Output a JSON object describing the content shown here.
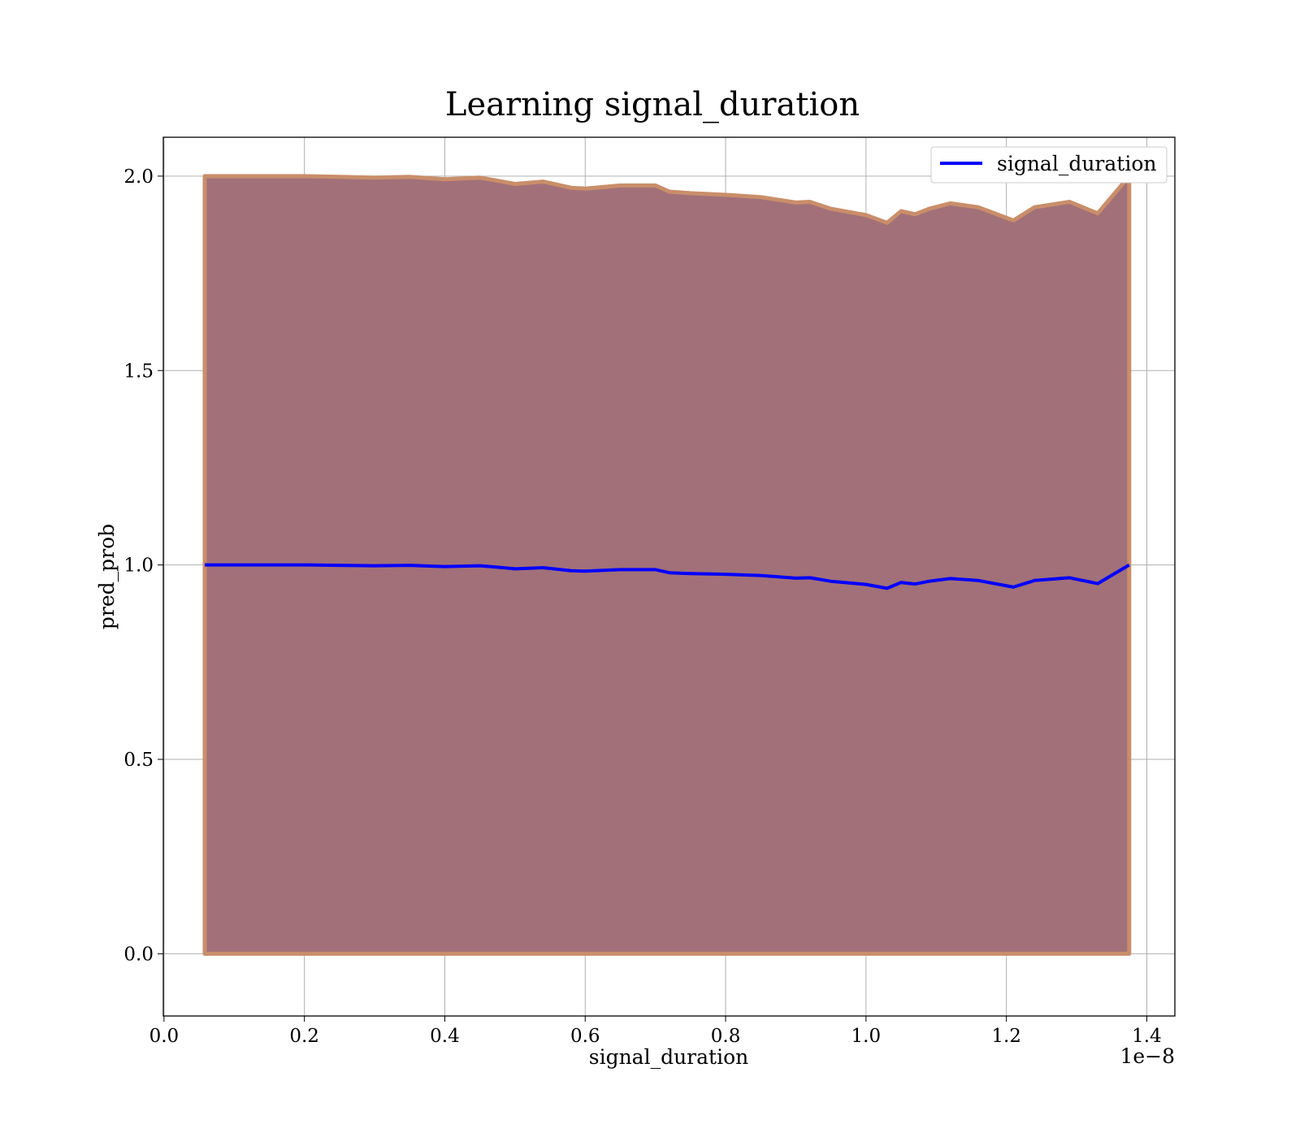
{
  "chart_data": {
    "type": "line",
    "title": "Learning signal_duration",
    "xlabel": "signal_duration",
    "ylabel": "pred_prob",
    "x_offset_text": "1e−8",
    "xlim": [
      -0.001,
      1.44
    ],
    "ylim": [
      -0.16,
      2.1
    ],
    "x_ticks": [
      0.0,
      0.2,
      0.4,
      0.6,
      0.8,
      1.0,
      1.2,
      1.4
    ],
    "x_tick_labels": [
      "0.0",
      "0.2",
      "0.4",
      "0.6",
      "0.8",
      "1.0",
      "1.2",
      "1.4"
    ],
    "y_ticks": [
      0.0,
      0.5,
      1.0,
      1.5,
      2.0
    ],
    "y_tick_labels": [
      "0.0",
      "0.5",
      "1.0",
      "1.5",
      "2.0"
    ],
    "grid": true,
    "legend_position": "top-right",
    "colors": {
      "line": "#0000ff",
      "band_inner": "#a27079",
      "band_outer": "#c98e6a",
      "grid": "#b0b0b0"
    },
    "series": [
      {
        "name": "signal_duration",
        "x": [
          0.058,
          0.1,
          0.15,
          0.2,
          0.25,
          0.3,
          0.35,
          0.4,
          0.45,
          0.47,
          0.5,
          0.54,
          0.58,
          0.6,
          0.65,
          0.7,
          0.72,
          0.75,
          0.8,
          0.85,
          0.9,
          0.92,
          0.95,
          1.0,
          1.03,
          1.05,
          1.07,
          1.09,
          1.12,
          1.16,
          1.21,
          1.24,
          1.29,
          1.33,
          1.375
        ],
        "y": [
          1.0,
          1.0,
          1.0,
          1.0,
          0.999,
          0.998,
          0.999,
          0.996,
          0.998,
          0.995,
          0.99,
          0.993,
          0.985,
          0.984,
          0.988,
          0.988,
          0.98,
          0.978,
          0.976,
          0.973,
          0.966,
          0.967,
          0.958,
          0.95,
          0.94,
          0.955,
          0.951,
          0.958,
          0.965,
          0.96,
          0.943,
          0.96,
          0.967,
          0.952,
          1.0
        ]
      }
    ],
    "band": {
      "x": [
        0.058,
        0.1,
        0.15,
        0.2,
        0.25,
        0.3,
        0.35,
        0.4,
        0.45,
        0.47,
        0.5,
        0.54,
        0.58,
        0.6,
        0.65,
        0.7,
        0.72,
        0.75,
        0.8,
        0.85,
        0.9,
        0.92,
        0.95,
        1.0,
        1.03,
        1.05,
        1.07,
        1.09,
        1.12,
        1.16,
        1.21,
        1.24,
        1.29,
        1.33,
        1.375
      ],
      "upper": [
        2.0,
        2.0,
        2.0,
        2.0,
        1.998,
        1.996,
        1.998,
        1.992,
        1.996,
        1.99,
        1.98,
        1.986,
        1.97,
        1.968,
        1.976,
        1.976,
        1.96,
        1.956,
        1.952,
        1.946,
        1.932,
        1.934,
        1.916,
        1.9,
        1.88,
        1.91,
        1.902,
        1.916,
        1.93,
        1.92,
        1.886,
        1.92,
        1.934,
        1.904,
        2.0
      ],
      "lower": [
        0.0,
        0.0,
        0.0,
        0.0,
        0.0,
        0.0,
        0.0,
        0.0,
        0.0,
        0.0,
        0.0,
        0.0,
        0.0,
        0.0,
        0.0,
        0.0,
        0.0,
        0.0,
        0.0,
        0.0,
        0.0,
        0.0,
        0.0,
        0.0,
        0.0,
        0.0,
        0.0,
        0.0,
        0.0,
        0.0,
        0.0,
        0.0,
        0.0,
        0.0,
        0.0
      ]
    }
  }
}
